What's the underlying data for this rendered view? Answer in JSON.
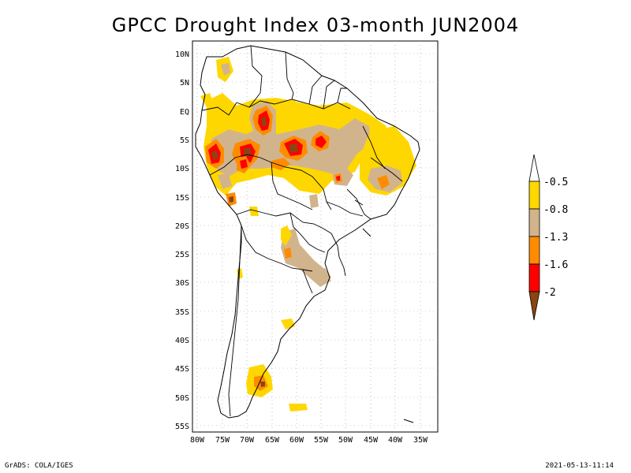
{
  "title": "GPCC Drought Index 03-month JUN2004",
  "footer": {
    "left": "GrADS: COLA/IGES",
    "right": "2021-05-13-11:14"
  },
  "axes": {
    "lat_labels": [
      "10N",
      "5N",
      "EQ",
      "5S",
      "10S",
      "15S",
      "20S",
      "25S",
      "30S",
      "35S",
      "40S",
      "45S",
      "50S",
      "55S"
    ],
    "lon_labels": [
      "80W",
      "75W",
      "70W",
      "65W",
      "60W",
      "55W",
      "50W",
      "45W",
      "40W",
      "35W"
    ]
  },
  "legend": {
    "labels": [
      "-0.5",
      "-0.8",
      "-1.3",
      "-1.6",
      "-2"
    ],
    "colors": {
      "yellow": "#ffd700",
      "tan": "#d2b48c",
      "orange": "#ff8c00",
      "red": "#ff0000",
      "brown": "#8b4513"
    }
  }
}
